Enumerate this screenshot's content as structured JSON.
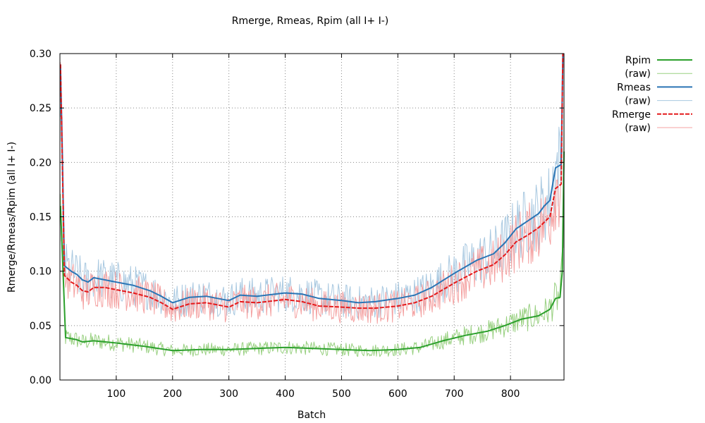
{
  "chart_data": {
    "type": "line",
    "title": "Rmerge, Rmeas, Rpim (all I+  I-)",
    "xlabel": "Batch",
    "ylabel": "Rmerge/Rmeas/Rpim (all I+  I-)",
    "xlim": [
      0,
      895
    ],
    "ylim": [
      0.0,
      0.3
    ],
    "xticks": [
      100,
      200,
      300,
      400,
      500,
      600,
      700,
      800
    ],
    "xtick_labels": [
      "100",
      "200",
      "300",
      "400",
      "500",
      "600",
      "700",
      "800"
    ],
    "yticks": [
      0.0,
      0.05,
      0.1,
      0.15,
      0.2,
      0.25,
      0.3
    ],
    "ytick_labels": [
      "0.00",
      "0.05",
      "0.10",
      "0.15",
      "0.20",
      "0.25",
      "0.30"
    ],
    "grid": true,
    "legend_position": "outside-top-right",
    "series": [
      {
        "name": "Rpim",
        "color": "#2ca02c",
        "style": "solid",
        "x": [
          1,
          10,
          30,
          40,
          60,
          100,
          150,
          200,
          250,
          300,
          350,
          400,
          450,
          500,
          550,
          600,
          640,
          680,
          720,
          760,
          790,
          820,
          850,
          870,
          880,
          888,
          892,
          895
        ],
        "y": [
          0.16,
          0.039,
          0.037,
          0.035,
          0.036,
          0.034,
          0.031,
          0.027,
          0.028,
          0.028,
          0.029,
          0.03,
          0.029,
          0.028,
          0.027,
          0.028,
          0.03,
          0.036,
          0.041,
          0.045,
          0.05,
          0.056,
          0.059,
          0.065,
          0.075,
          0.076,
          0.1,
          0.21
        ]
      },
      {
        "name": "(raw)",
        "color": "#98d080",
        "style": "raw",
        "x": [
          1,
          10,
          30,
          40,
          60,
          100,
          150,
          200,
          250,
          300,
          350,
          400,
          450,
          500,
          550,
          600,
          640,
          680,
          720,
          760,
          790,
          820,
          850,
          870,
          880,
          888,
          892,
          895
        ],
        "y": [
          0.16,
          0.039,
          0.037,
          0.035,
          0.036,
          0.034,
          0.031,
          0.027,
          0.028,
          0.028,
          0.029,
          0.03,
          0.029,
          0.028,
          0.027,
          0.028,
          0.03,
          0.036,
          0.041,
          0.045,
          0.05,
          0.056,
          0.059,
          0.065,
          0.075,
          0.076,
          0.1,
          0.21
        ]
      },
      {
        "name": "Rmeas",
        "color": "#2a75b5",
        "style": "solid",
        "x": [
          1,
          8,
          20,
          30,
          40,
          50,
          60,
          80,
          100,
          130,
          160,
          180,
          200,
          230,
          260,
          280,
          300,
          320,
          350,
          400,
          430,
          460,
          500,
          530,
          560,
          600,
          630,
          660,
          700,
          740,
          770,
          790,
          810,
          830,
          850,
          860,
          870,
          880,
          890,
          893
        ],
        "y": [
          0.29,
          0.105,
          0.1,
          0.097,
          0.092,
          0.09,
          0.094,
          0.092,
          0.09,
          0.087,
          0.082,
          0.077,
          0.071,
          0.076,
          0.077,
          0.075,
          0.073,
          0.078,
          0.077,
          0.08,
          0.079,
          0.075,
          0.073,
          0.071,
          0.072,
          0.075,
          0.078,
          0.085,
          0.098,
          0.11,
          0.116,
          0.126,
          0.139,
          0.146,
          0.153,
          0.16,
          0.165,
          0.195,
          0.198,
          0.3
        ]
      },
      {
        "name": "(raw)",
        "color": "#a8c8e0",
        "style": "raw",
        "x": [
          1,
          8,
          20,
          30,
          40,
          50,
          60,
          80,
          100,
          130,
          160,
          180,
          200,
          230,
          260,
          280,
          300,
          320,
          350,
          400,
          430,
          460,
          500,
          530,
          560,
          600,
          630,
          660,
          700,
          740,
          770,
          790,
          810,
          830,
          850,
          860,
          870,
          880,
          890,
          893
        ],
        "y": [
          0.29,
          0.105,
          0.1,
          0.097,
          0.092,
          0.09,
          0.094,
          0.092,
          0.09,
          0.087,
          0.082,
          0.077,
          0.071,
          0.076,
          0.077,
          0.075,
          0.073,
          0.078,
          0.077,
          0.08,
          0.079,
          0.075,
          0.073,
          0.071,
          0.072,
          0.075,
          0.078,
          0.085,
          0.098,
          0.11,
          0.116,
          0.126,
          0.139,
          0.146,
          0.153,
          0.16,
          0.165,
          0.195,
          0.198,
          0.3
        ]
      },
      {
        "name": "Rmerge",
        "color": "#e41a1c",
        "style": "dashed",
        "x": [
          1,
          8,
          20,
          30,
          40,
          50,
          60,
          80,
          100,
          130,
          160,
          180,
          200,
          230,
          260,
          280,
          300,
          320,
          350,
          400,
          430,
          460,
          500,
          530,
          560,
          600,
          630,
          660,
          700,
          740,
          770,
          790,
          810,
          830,
          850,
          860,
          870,
          880,
          890,
          893
        ],
        "y": [
          0.29,
          0.096,
          0.09,
          0.087,
          0.082,
          0.081,
          0.085,
          0.085,
          0.083,
          0.08,
          0.076,
          0.071,
          0.065,
          0.07,
          0.071,
          0.069,
          0.067,
          0.072,
          0.071,
          0.074,
          0.072,
          0.068,
          0.067,
          0.066,
          0.066,
          0.068,
          0.071,
          0.077,
          0.089,
          0.1,
          0.106,
          0.115,
          0.127,
          0.133,
          0.14,
          0.145,
          0.15,
          0.176,
          0.18,
          0.3
        ]
      },
      {
        "name": "(raw)",
        "color": "#f4a0a0",
        "style": "raw",
        "x": [
          1,
          8,
          20,
          30,
          40,
          50,
          60,
          80,
          100,
          130,
          160,
          180,
          200,
          230,
          260,
          280,
          300,
          320,
          350,
          400,
          430,
          460,
          500,
          530,
          560,
          600,
          630,
          660,
          700,
          740,
          770,
          790,
          810,
          830,
          850,
          860,
          870,
          880,
          890,
          893
        ],
        "y": [
          0.29,
          0.096,
          0.09,
          0.087,
          0.082,
          0.081,
          0.085,
          0.085,
          0.083,
          0.08,
          0.076,
          0.071,
          0.065,
          0.07,
          0.071,
          0.069,
          0.067,
          0.072,
          0.071,
          0.074,
          0.072,
          0.068,
          0.067,
          0.066,
          0.066,
          0.068,
          0.071,
          0.077,
          0.089,
          0.1,
          0.106,
          0.115,
          0.127,
          0.133,
          0.14,
          0.145,
          0.15,
          0.176,
          0.18,
          0.3
        ]
      }
    ]
  }
}
